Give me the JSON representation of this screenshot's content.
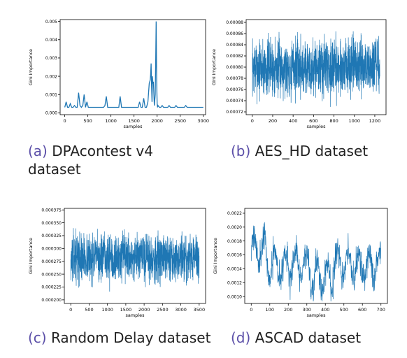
{
  "chart_data": [
    {
      "type": "line",
      "id": "a",
      "caption_label": "(a)",
      "caption_text": "DPAcontest v4 dataset",
      "xlabel": "samples",
      "ylabel": "Gini Importance",
      "xlim": [
        -100,
        3050
      ],
      "ylim": [
        -0.0001,
        0.0051
      ],
      "xticks": [
        0,
        500,
        1000,
        1500,
        2000,
        2500,
        3000
      ],
      "yticks": [
        0.0,
        0.001,
        0.002,
        0.003,
        0.004,
        0.005
      ],
      "ytick_labels": [
        "0.000",
        "0.001",
        "0.002",
        "0.003",
        "0.004",
        "0.005"
      ],
      "color": "#1f77b4",
      "series": [
        {
          "x": [
            0,
            30,
            60,
            90,
            120,
            150,
            180,
            210,
            240,
            270,
            300,
            330,
            360,
            390,
            420,
            450,
            480,
            510,
            540,
            570,
            600,
            630,
            660,
            690,
            720,
            750,
            780,
            810,
            840,
            870,
            900,
            930,
            960,
            990,
            1020,
            1050,
            1080,
            1110,
            1140,
            1170,
            1200,
            1230,
            1260,
            1290,
            1320,
            1350,
            1380,
            1410,
            1440,
            1470,
            1500,
            1530,
            1560,
            1590,
            1620,
            1650,
            1680,
            1710,
            1740,
            1770,
            1800,
            1830,
            1850,
            1860,
            1870,
            1880,
            1890,
            1900,
            1910,
            1920,
            1940,
            1960,
            1970,
            1980,
            1990,
            2000,
            2010,
            2020,
            2050,
            2080,
            2110,
            2140,
            2170,
            2200,
            2230,
            2260,
            2290,
            2320,
            2350,
            2380,
            2410,
            2440,
            2470,
            2500,
            2530,
            2560,
            2590,
            2620,
            2650,
            2680,
            2710,
            2740,
            2770,
            2800,
            2830,
            2860,
            2890,
            2920,
            2950,
            2980,
            3000
          ],
          "y": [
            0.0003,
            0.0006,
            0.0003,
            0.0003,
            0.0005,
            0.0003,
            0.0003,
            0.0004,
            0.0003,
            0.0003,
            0.0011,
            0.0004,
            0.0003,
            0.0004,
            0.001,
            0.0003,
            0.0006,
            0.0003,
            0.0003,
            0.0003,
            0.0003,
            0.0003,
            0.0003,
            0.0003,
            0.0003,
            0.0003,
            0.0003,
            0.0003,
            0.0003,
            0.0004,
            0.0009,
            0.0003,
            0.0003,
            0.0003,
            0.0003,
            0.0003,
            0.0003,
            0.0003,
            0.0003,
            0.0003,
            0.0009,
            0.0003,
            0.0003,
            0.0003,
            0.0003,
            0.0003,
            0.0003,
            0.0003,
            0.0003,
            0.0003,
            0.0003,
            0.0003,
            0.0003,
            0.0003,
            0.0006,
            0.0003,
            0.0003,
            0.0008,
            0.0003,
            0.0003,
            0.0006,
            0.0016,
            0.0018,
            0.0021,
            0.0027,
            0.0015,
            0.0006,
            0.002,
            0.0016,
            0.0017,
            0.0004,
            0.001,
            0.003,
            0.005,
            0.0018,
            0.0005,
            0.0003,
            0.0004,
            0.0003,
            0.0003,
            0.0004,
            0.0003,
            0.0003,
            0.0003,
            0.0003,
            0.0004,
            0.0003,
            0.0003,
            0.0003,
            0.0003,
            0.0004,
            0.0003,
            0.0003,
            0.0003,
            0.0003,
            0.0003,
            0.0003,
            0.0004,
            0.0003,
            0.0003,
            0.0003,
            0.0003,
            0.0003,
            0.0003,
            0.0003,
            0.0003,
            0.0003,
            0.0003,
            0.0003,
            0.0003,
            0.0003
          ]
        }
      ],
      "grid": false,
      "legend": "none"
    },
    {
      "type": "line",
      "id": "b",
      "caption_label": "(b)",
      "caption_text": "AES_HD dataset",
      "xlabel": "samples",
      "ylabel": "Gini Importance",
      "xlim": [
        -60,
        1310
      ],
      "ylim": [
        0.000715,
        0.000885
      ],
      "xticks": [
        0,
        200,
        400,
        600,
        800,
        1000,
        1200
      ],
      "yticks": [
        0.00072,
        0.00074,
        0.00076,
        0.00078,
        0.0008,
        0.00082,
        0.00084,
        0.00086,
        0.00088
      ],
      "ytick_labels": [
        "0.00072",
        "0.00074",
        "0.00076",
        "0.00078",
        "0.00080",
        "0.00082",
        "0.00084",
        "0.00086",
        "0.00088"
      ],
      "color": "#1f77b4",
      "synthetic": {
        "n": 1250,
        "x_end": 1249,
        "center": 0.0008,
        "spread": 4e-05,
        "min": 0.00072,
        "max": 0.000885,
        "seed": 7
      },
      "grid": false,
      "legend": "none"
    },
    {
      "type": "line",
      "id": "c",
      "caption_label": "(c)",
      "caption_text": "Random Delay dataset",
      "xlabel": "samples",
      "ylabel": "Gini Importance",
      "xlim": [
        -175,
        3675
      ],
      "ylim": [
        0.000193,
        0.000378
      ],
      "xticks": [
        0,
        500,
        1000,
        1500,
        2000,
        2500,
        3000,
        3500
      ],
      "yticks": [
        0.0002,
        0.000225,
        0.00025,
        0.000275,
        0.0003,
        0.000325,
        0.00035,
        0.000375
      ],
      "ytick_labels": [
        "0.000200",
        "0.000225",
        "0.000250",
        "0.000275",
        "0.000300",
        "0.000325",
        "0.000350",
        "0.000375"
      ],
      "color": "#1f77b4",
      "synthetic": {
        "n": 1200,
        "x_end": 3500,
        "center": 0.000282,
        "spread": 3.5e-05,
        "min": 0.000198,
        "max": 0.000373,
        "seed": 13
      },
      "grid": false,
      "legend": "none"
    },
    {
      "type": "line",
      "id": "d",
      "caption_label": "(d)",
      "caption_text": "ASCAD dataset",
      "xlabel": "samples",
      "ylabel": "Gini Importance",
      "xlim": [
        -35,
        735
      ],
      "ylim": [
        0.0009,
        0.00227
      ],
      "xticks": [
        0,
        100,
        200,
        300,
        400,
        500,
        600,
        700
      ],
      "yticks": [
        0.001,
        0.0012,
        0.0014,
        0.0016,
        0.0018,
        0.002,
        0.0022
      ],
      "ytick_labels": [
        "0.0010",
        "0.0012",
        "0.0014",
        "0.0016",
        "0.0018",
        "0.0020",
        "0.0022"
      ],
      "color": "#1f77b4",
      "synthetic": {
        "n": 700,
        "x_end": 699,
        "center": 0.00145,
        "spread": 0.00017,
        "min": 0.00093,
        "max": 0.00225,
        "seed": 21,
        "periodic": true
      },
      "grid": false,
      "legend": "none"
    }
  ]
}
